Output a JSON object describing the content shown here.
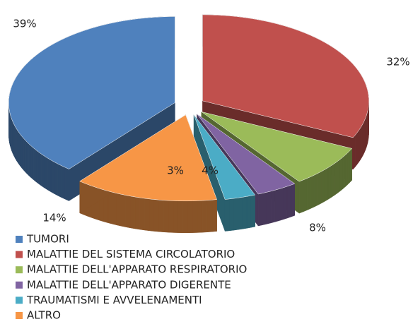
{
  "chart_data": {
    "type": "pie",
    "categories": [
      "TUMORI",
      "MALATTIE DEL SISTEMA CIRCOLATORIO",
      "MALATTIE DELL'APPARATO RESPIRATORIO",
      "MALATTIE DELL'APPARATO DIGERENTE",
      "TRAUMATISMI E AVVELENAMENTI",
      "ALTRO"
    ],
    "values": [
      39,
      32,
      8,
      4,
      3,
      14
    ],
    "value_labels": [
      "39%",
      "32%",
      "8%",
      "4%",
      "3%",
      "14%"
    ],
    "colors": [
      "#4f81bd",
      "#c0504d",
      "#9bbb59",
      "#8064a2",
      "#4bacc6",
      "#f79646"
    ],
    "legend": "bottom-left"
  }
}
